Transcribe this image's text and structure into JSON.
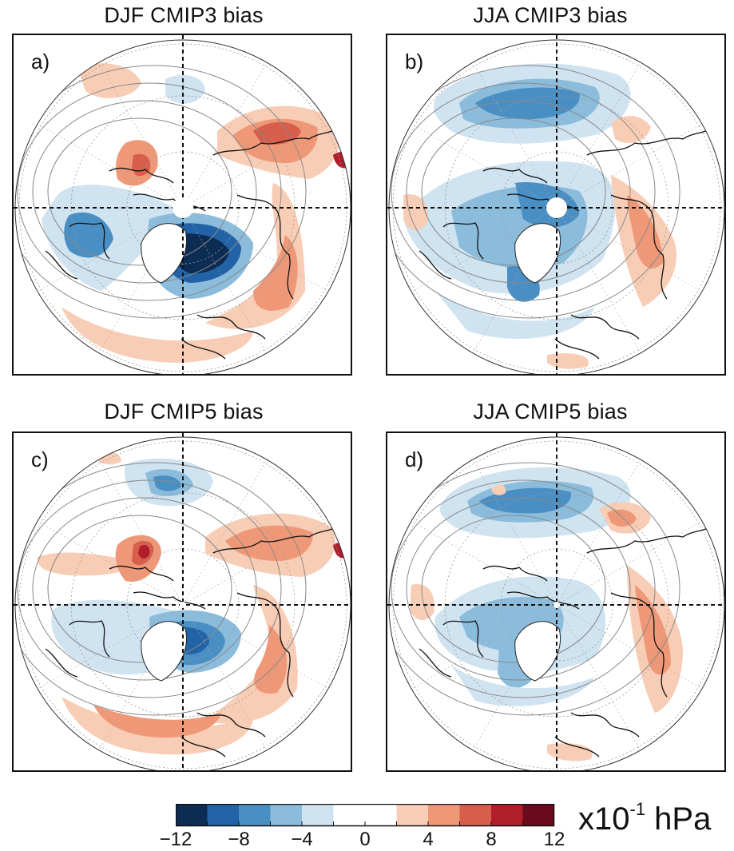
{
  "panels": [
    {
      "id": "a",
      "title": "DJF CMIP3 bias",
      "letter": "a)",
      "center_marker": "large"
    },
    {
      "id": "b",
      "title": "JJA CMIP3 bias",
      "letter": "b)",
      "center_marker": "large"
    },
    {
      "id": "c",
      "title": "DJF CMIP5 bias",
      "letter": "c)",
      "center_marker": "small"
    },
    {
      "id": "d",
      "title": "JJA CMIP5 bias",
      "letter": "d)",
      "center_marker": "small"
    }
  ],
  "colorbar": {
    "colors": [
      "#0d2c54",
      "#2163a6",
      "#4a8fc4",
      "#8bbcdc",
      "#cfe3f0",
      "#ffffff",
      "#ffffff",
      "#f8cdb6",
      "#ef9877",
      "#d85e4c",
      "#b01e2c",
      "#6a0a1c"
    ],
    "ticks": [
      "−12",
      "−8",
      "−4",
      "0",
      "4",
      "8",
      "12"
    ],
    "units_base": "x10",
    "units_exp": "-1",
    "units_tail": " hPa"
  },
  "colors": {
    "blue_light": "#cfe3f0",
    "blue_mid": "#8bbcdc",
    "blue": "#4a8fc4",
    "blue_dark": "#2163a6",
    "blue_darkest": "#0d2c54",
    "red_light": "#f8cdb6",
    "red_mid": "#ef9877",
    "red": "#d85e4c",
    "red_dark": "#b01e2c"
  }
}
